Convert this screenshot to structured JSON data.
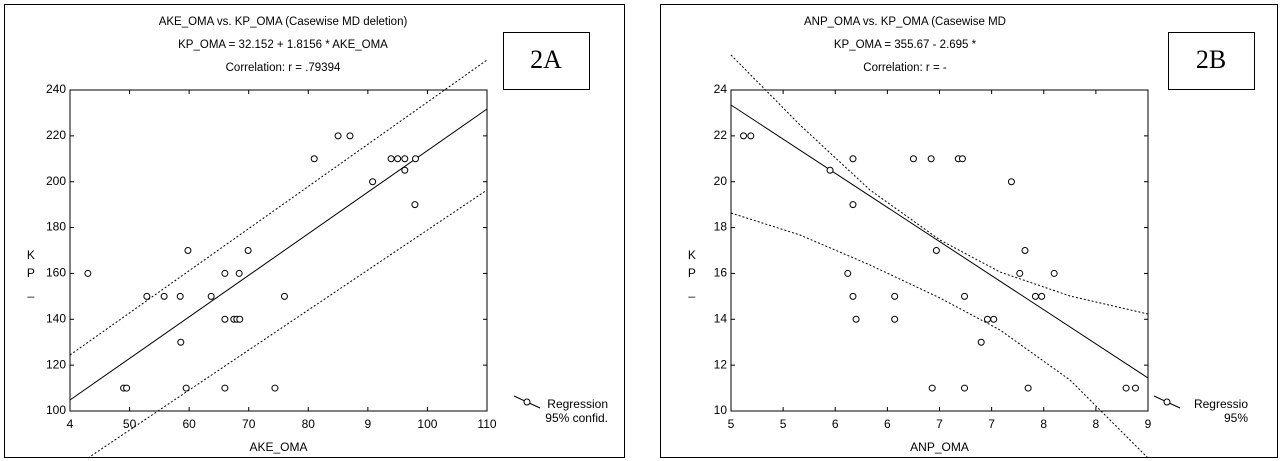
{
  "chart_data": [
    {
      "type": "scatter",
      "title": "AKE_OMA vs. KP_OMA (Casewise MD deletion)",
      "subtitle": "KP_OMA = 32.152 + 1.8156 * AKE_OMA",
      "annotation": "Correlation: r = .79394",
      "panel_label": "2A",
      "x_label": "AKE_OMA",
      "y_label": "KP_",
      "legend": [
        "Regression",
        "95% confid."
      ],
      "xlim": [
        40,
        110
      ],
      "xticks": [
        {
          "value": 40,
          "label": "4"
        },
        50,
        60,
        70,
        80,
        {
          "value": 90,
          "label": "9"
        },
        100,
        110
      ],
      "ylim": [
        100,
        240
      ],
      "yticks": [
        100,
        120,
        140,
        160,
        180,
        200,
        220,
        240
      ],
      "x": [
        43,
        49,
        49.5,
        52.9,
        55.8,
        58.5,
        58.6,
        59.5,
        59.8,
        63.7,
        66,
        66,
        66,
        67.5,
        68,
        68.4,
        68.5,
        69.9,
        76,
        74.4,
        81,
        85,
        87,
        90.8,
        93.9,
        95,
        96.2,
        96.2,
        98,
        97.9
      ],
      "values": [
        160,
        110,
        110,
        150,
        150,
        150,
        130,
        110,
        170,
        150,
        160,
        140,
        110,
        140,
        140,
        160,
        140,
        170,
        150,
        110,
        210,
        220,
        220,
        200,
        210,
        210,
        210,
        205,
        210,
        190
      ]
    },
    {
      "type": "scatter",
      "title": "ANP_OMA vs. KP_OMA (Casewise MD",
      "subtitle": "KP_OMA = 355.67 - 2.695 *",
      "annotation": "Correlation: r = -",
      "panel_label": "2B",
      "x_label": "ANP_OMA",
      "y_label": "KP_",
      "legend": [
        "Regressio",
        "95%"
      ],
      "xlim": [
        5,
        9
      ],
      "xticks": [
        5,
        {
          "value": 5.5,
          "label": "5"
        },
        6,
        {
          "value": 6.5,
          "label": "6"
        },
        7,
        {
          "value": 7.5,
          "label": "7"
        },
        8,
        {
          "value": 8.5,
          "label": "8"
        },
        9
      ],
      "ylim": [
        10,
        24
      ],
      "yticks": [
        10,
        12,
        14,
        16,
        18,
        20,
        22,
        24
      ],
      "x": [
        5.12,
        5.19,
        5.95,
        6.17,
        6.17,
        6.12,
        6.17,
        6.2,
        6.75,
        6.92,
        6.57,
        6.57,
        6.97,
        6.93,
        7.18,
        7.22,
        7.24,
        7.24,
        7.4,
        7.46,
        7.52,
        7.69,
        7.77,
        7.82,
        7.85,
        7.92,
        7.98,
        8.1,
        8.79,
        8.88
      ],
      "values": [
        22,
        22,
        20.5,
        21,
        19,
        16,
        15,
        14,
        21,
        21,
        15,
        14,
        17,
        11,
        21,
        21,
        15,
        11,
        13,
        14,
        14,
        20,
        16,
        17,
        11,
        15,
        15,
        16,
        11,
        11
      ]
    }
  ]
}
